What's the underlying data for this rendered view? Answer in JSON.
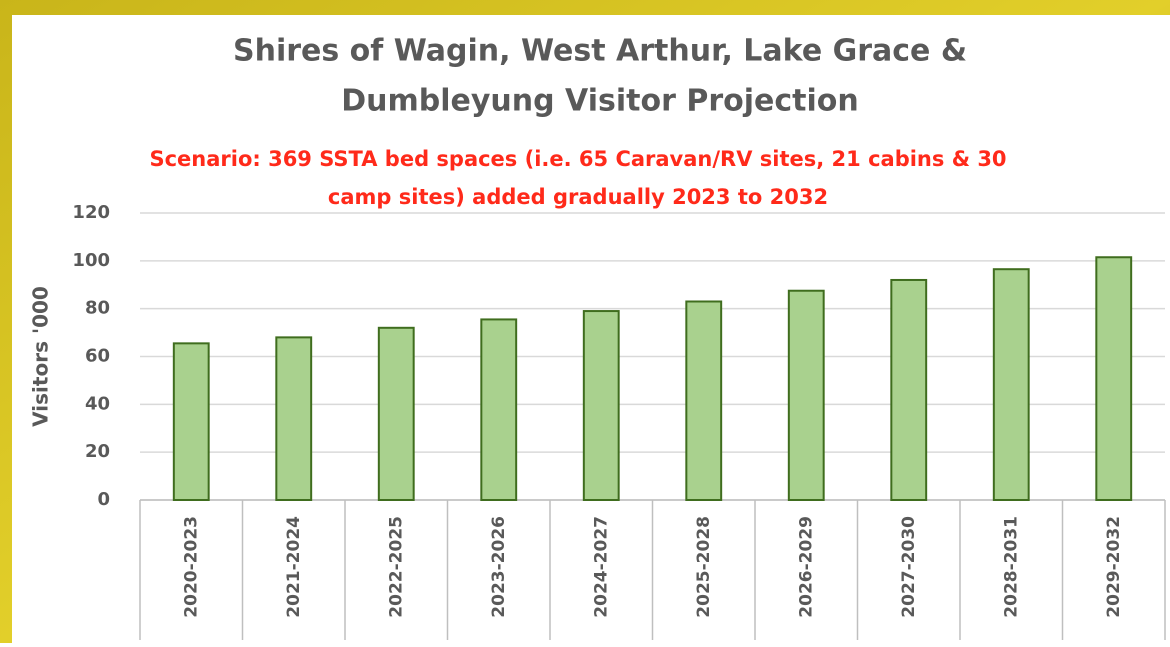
{
  "chart_data": {
    "type": "bar",
    "title": [
      "Shires of Wagin, West Arthur, Lake Grace &",
      "Dumbleyung Visitor Projection"
    ],
    "subtitle": [
      "Scenario:  369 SSTA bed spaces  (i.e. 65 Caravan/RV sites, 21 cabins & 30",
      "camp sites)  added gradually  2023 to 2032"
    ],
    "y_label": "Visitors '000",
    "categories": [
      "2020-2023",
      "2021-2024",
      "2022-2025",
      "2023-2026",
      "2024-2027",
      "2025-2028",
      "2026-2029",
      "2027-2030",
      "2028-2031",
      "2029-2032"
    ],
    "values": [
      65.5,
      68,
      72,
      75.5,
      79,
      83,
      87.5,
      92,
      96.5,
      101.5
    ],
    "color": "#a9d18e",
    "ylim": [
      0,
      120
    ],
    "yticks": [
      0,
      20,
      40,
      60,
      80,
      100,
      120
    ],
    "grid": true
  }
}
